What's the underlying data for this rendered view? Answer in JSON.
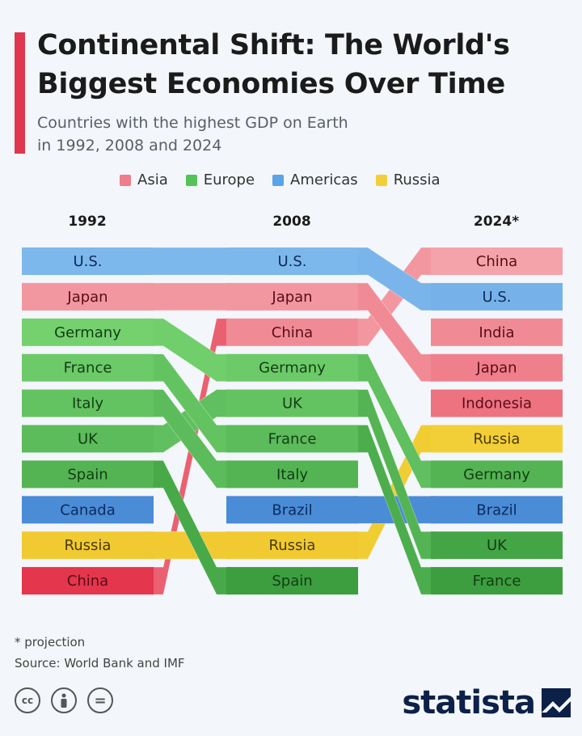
{
  "header": {
    "title_line1": "Continental Shift: The World's",
    "title_line2": "Biggest Economies Over Time",
    "subtitle_line1": "Countries with the highest GDP on Earth",
    "subtitle_line2": "in 1992, 2008 and 2024",
    "accent_color": "#e0374e"
  },
  "legend": [
    {
      "label": "Asia",
      "color": "#ef7d8b"
    },
    {
      "label": "Europe",
      "color": "#55c25a"
    },
    {
      "label": "Americas",
      "color": "#5aa3e6"
    },
    {
      "label": "Russia",
      "color": "#f2cf3a"
    }
  ],
  "chart_data": {
    "type": "bump",
    "title": "Continental Shift: The World's Biggest Economies Over Time",
    "columns": [
      "1992",
      "2008",
      "2024*"
    ],
    "rankings": [
      [
        "U.S.",
        "Japan",
        "Germany",
        "France",
        "Italy",
        "UK",
        "Spain",
        "Canada",
        "Russia",
        "China"
      ],
      [
        "U.S.",
        "Japan",
        "China",
        "Germany",
        "UK",
        "France",
        "Italy",
        "Brazil",
        "Russia",
        "Spain"
      ],
      [
        "China",
        "U.S.",
        "India",
        "Japan",
        "Indonesia",
        "Russia",
        "Germany",
        "Brazil",
        "UK",
        "France"
      ]
    ],
    "regions": {
      "U.S.": "Americas",
      "Canada": "Americas",
      "Brazil": "Americas",
      "Japan": "Asia",
      "China": "Asia",
      "India": "Asia",
      "Indonesia": "Asia",
      "Germany": "Europe",
      "France": "Europe",
      "Italy": "Europe",
      "UK": "Europe",
      "Spain": "Europe",
      "Russia": "Russia"
    },
    "region_colors": {
      "Asia": [
        "#f4a3ab",
        "#e4364c"
      ],
      "Europe": [
        "#84e07c",
        "#3c9e3f"
      ],
      "Americas": [
        "#7db8ec",
        "#3b7fd0"
      ],
      "Russia": [
        "#f5d640",
        "#f0c930"
      ]
    },
    "note": "* projection"
  },
  "footer": {
    "note": "* projection",
    "source": "Source: World Bank and IMF",
    "license_icons": [
      "cc-icon",
      "attribution-icon",
      "no-derivatives-icon"
    ],
    "brand": "statista"
  }
}
